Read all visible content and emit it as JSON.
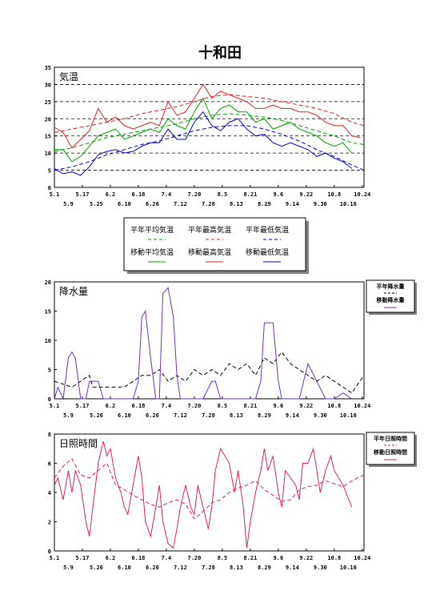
{
  "title": "十和田",
  "chart_data": [
    {
      "type": "line",
      "title": "気温",
      "ylim": [
        0,
        35
      ],
      "yticks": [
        0,
        5,
        10,
        15,
        20,
        25,
        30,
        35
      ],
      "x_ticks_row1": [
        "5.1",
        "5.17",
        "6.2",
        "6.18",
        "7.4",
        "7.20",
        "8.5",
        "8.21",
        "9.6",
        "9.22",
        "10.8",
        "10.24"
      ],
      "x_ticks_row2": [
        "5.9",
        "5.25",
        "6.10",
        "6.26",
        "7.12",
        "7.28",
        "8.13",
        "8.29",
        "9.14",
        "9.30",
        "10.16"
      ],
      "x_days": [
        0,
        177
      ],
      "grid": "horizontal dashed",
      "legend": {
        "placement": "bottom-center",
        "row1": [
          "平年平均気温",
          "平年最高気温",
          "平年最低気温"
        ],
        "row2": [
          "移動平均気温",
          "移動最高気温",
          "移動最低気温"
        ]
      },
      "colors": {
        "mean": "#00a000",
        "max": "#e02020",
        "min": "#0000cc"
      },
      "series": [
        {
          "name": "平年平均気温",
          "style": "dashed",
          "color": "#00a000",
          "x": [
            0,
            10,
            20,
            30,
            40,
            50,
            60,
            70,
            80,
            90,
            100,
            110,
            120,
            130,
            140,
            150,
            160,
            170,
            177
          ],
          "y": [
            10.5,
            11.5,
            13,
            14.5,
            15.5,
            16.5,
            17.5,
            18.5,
            20,
            21,
            21.5,
            21,
            20.5,
            19.5,
            18,
            16.5,
            15,
            13,
            12.5
          ]
        },
        {
          "name": "平年最高気温",
          "style": "dashed",
          "color": "#e02020",
          "x": [
            0,
            10,
            20,
            30,
            40,
            50,
            60,
            70,
            80,
            90,
            100,
            110,
            120,
            130,
            140,
            150,
            160,
            170,
            177
          ],
          "y": [
            16,
            17,
            18,
            19,
            20,
            21.5,
            22.5,
            23.5,
            25,
            26.5,
            27,
            26.5,
            26,
            25,
            24,
            23,
            21.5,
            19,
            18
          ]
        },
        {
          "name": "平年最低気温",
          "style": "dashed",
          "color": "#0000cc",
          "x": [
            0,
            10,
            20,
            30,
            40,
            50,
            60,
            70,
            80,
            90,
            100,
            110,
            120,
            130,
            140,
            150,
            160,
            170,
            177
          ],
          "y": [
            5,
            6,
            7.5,
            9.5,
            11,
            12.5,
            13.5,
            15,
            16.5,
            17.5,
            18,
            18,
            17,
            15.5,
            13.5,
            11,
            9,
            6.5,
            5
          ]
        },
        {
          "name": "移動平均気温",
          "style": "solid",
          "color": "#00a000",
          "x": [
            0,
            5,
            10,
            15,
            20,
            25,
            30,
            35,
            40,
            45,
            50,
            55,
            60,
            65,
            70,
            75,
            80,
            85,
            90,
            95,
            100,
            105,
            110,
            115,
            120,
            125,
            130,
            135,
            140,
            145,
            150,
            155,
            160,
            165,
            170
          ],
          "y": [
            11,
            11,
            7.5,
            9,
            12,
            15,
            16,
            17,
            14,
            15,
            16,
            17,
            16,
            20,
            18,
            17,
            22,
            26,
            20,
            23,
            24,
            22,
            22,
            19,
            20,
            17,
            18,
            19,
            17,
            16,
            15,
            13,
            12,
            13,
            10
          ]
        },
        {
          "name": "移動最高気温",
          "style": "solid",
          "color": "#e02020",
          "x": [
            0,
            5,
            10,
            15,
            20,
            25,
            30,
            35,
            40,
            45,
            50,
            55,
            60,
            65,
            70,
            75,
            80,
            85,
            90,
            95,
            100,
            105,
            110,
            115,
            120,
            125,
            130,
            135,
            140,
            145,
            150,
            155,
            160,
            165,
            170,
            175
          ],
          "y": [
            17.5,
            16,
            11.5,
            14,
            16.5,
            23,
            19,
            20.5,
            18,
            17,
            18,
            19,
            18,
            25,
            21,
            22,
            26,
            30,
            26,
            28,
            27,
            26,
            25,
            23,
            23,
            24,
            23,
            23,
            22,
            22,
            21,
            19,
            18,
            18,
            15,
            14.5
          ]
        },
        {
          "name": "移動最低気温",
          "style": "solid",
          "color": "#0000cc",
          "x": [
            0,
            5,
            10,
            15,
            20,
            25,
            30,
            35,
            40,
            45,
            50,
            55,
            60,
            65,
            70,
            75,
            80,
            85,
            90,
            95,
            100,
            105,
            110,
            115,
            120,
            125,
            130,
            135,
            140,
            145,
            150,
            155,
            160,
            165,
            170
          ],
          "y": [
            5.5,
            4,
            4.5,
            3.5,
            6,
            9.5,
            10.5,
            11,
            10,
            10.5,
            12,
            13,
            13,
            17,
            14,
            14,
            19,
            22,
            18,
            16.5,
            19,
            20,
            17,
            15,
            15.5,
            13,
            12,
            13,
            12,
            11,
            9,
            10,
            8.5,
            7.5,
            5.5
          ]
        }
      ]
    },
    {
      "type": "line",
      "title": "降水量",
      "ylim": [
        0,
        20
      ],
      "yticks": [
        0,
        5,
        10,
        15,
        20
      ],
      "x_ticks_row1": [
        "5.1",
        "5.17",
        "6.2",
        "6.18",
        "7.4",
        "7.20",
        "8.5",
        "8.21",
        "9.6",
        "9.22",
        "10.8",
        "10.24"
      ],
      "x_ticks_row2": [
        "5.9",
        "5.26",
        "6.10",
        "6.26",
        "7.12",
        "7.28",
        "8.13",
        "8.29",
        "9.14",
        "9.30",
        "10.16"
      ],
      "x_days": [
        0,
        177
      ],
      "legend": {
        "placement": "right",
        "entries": [
          "平年降水量",
          "移動降水量"
        ]
      },
      "colors": {
        "normal": "#000000",
        "moving": "#7030c0"
      },
      "series": [
        {
          "name": "平年降水量",
          "style": "dashed",
          "color": "#000000",
          "x": [
            0,
            10,
            20,
            22,
            30,
            40,
            45,
            50,
            55,
            60,
            65,
            70,
            75,
            80,
            85,
            90,
            95,
            100,
            105,
            110,
            115,
            120,
            125,
            130,
            135,
            140,
            145,
            150,
            155,
            160,
            165,
            170,
            177
          ],
          "y": [
            3,
            2,
            4,
            2,
            2,
            2,
            3,
            4,
            4,
            5,
            3,
            4,
            3,
            5,
            4,
            5,
            4,
            6,
            5,
            6,
            4,
            7,
            6,
            8,
            6,
            5,
            4,
            3,
            4,
            3,
            2,
            1,
            4
          ]
        },
        {
          "name": "移動降水量",
          "style": "solid",
          "color": "#7030c0",
          "x": [
            0,
            2,
            5,
            8,
            10,
            12,
            15,
            18,
            20,
            25,
            28,
            30,
            35,
            40,
            45,
            48,
            50,
            52,
            55,
            58,
            60,
            62,
            65,
            68,
            70,
            72,
            75,
            80,
            85,
            90,
            92,
            95,
            100,
            105,
            110,
            115,
            118,
            120,
            125,
            128,
            130,
            132,
            135,
            138,
            140,
            145,
            150,
            155,
            160,
            165,
            170
          ],
          "y": [
            0,
            2,
            0,
            7,
            8,
            7,
            0,
            0,
            3,
            3,
            0,
            0,
            0,
            0,
            0,
            3,
            14,
            15,
            7,
            0,
            0,
            18,
            19,
            14,
            4,
            0,
            0,
            0,
            0,
            3,
            3,
            0,
            0,
            0,
            0,
            0,
            3,
            13,
            13,
            3,
            0,
            0,
            0,
            0,
            0,
            6,
            3,
            0,
            0,
            1,
            0
          ]
        }
      ]
    },
    {
      "type": "line",
      "title": "日照時間",
      "ylim": [
        0,
        8
      ],
      "yticks": [
        0,
        2,
        4,
        6,
        8
      ],
      "x_ticks_row1": [
        "5.1",
        "5.17",
        "6.2",
        "6.18",
        "7.4",
        "7.20",
        "8.5",
        "8.21",
        "9.6",
        "9.22",
        "10.8",
        "10.24"
      ],
      "x_ticks_row2": [
        "5.9",
        "5.26",
        "6.10",
        "6.26",
        "7.12",
        "7.28",
        "8.13",
        "8.29",
        "9.14",
        "9.30",
        "10.16"
      ],
      "x_days": [
        0,
        177
      ],
      "legend": {
        "placement": "right",
        "entries": [
          "平年日照時間",
          "移動日照時間"
        ]
      },
      "colors": {
        "normal": "#e02060",
        "moving": "#e02060"
      },
      "series": [
        {
          "name": "平年日照時間",
          "style": "dashed",
          "color": "#e02060",
          "x": [
            0,
            5,
            10,
            15,
            20,
            25,
            30,
            35,
            40,
            45,
            50,
            55,
            60,
            65,
            70,
            75,
            80,
            85,
            90,
            95,
            100,
            105,
            110,
            115,
            120,
            125,
            130,
            135,
            140,
            145,
            150,
            155,
            160,
            165,
            170,
            177
          ],
          "y": [
            5,
            5.8,
            6.3,
            5.2,
            5,
            5.5,
            6,
            4.5,
            4.2,
            3.8,
            3.5,
            3.2,
            3,
            3.3,
            3.5,
            3.2,
            2.2,
            2.7,
            3.3,
            3.5,
            4,
            4.3,
            4.5,
            4.8,
            4.2,
            3.8,
            3.4,
            3.5,
            4.2,
            4.4,
            4.5,
            4.8,
            4.6,
            4.4,
            4.8,
            5.2
          ]
        },
        {
          "name": "移動日照時間",
          "style": "solid",
          "color": "#e02060",
          "x": [
            0,
            2,
            5,
            8,
            10,
            12,
            15,
            18,
            20,
            25,
            28,
            30,
            32,
            35,
            38,
            40,
            42,
            45,
            48,
            50,
            52,
            55,
            58,
            60,
            62,
            65,
            68,
            70,
            72,
            75,
            78,
            80,
            82,
            85,
            88,
            90,
            92,
            95,
            100,
            103,
            105,
            108,
            110,
            112,
            115,
            118,
            120,
            122,
            125,
            128,
            130,
            132,
            135,
            138,
            140,
            142,
            145,
            148,
            150,
            152,
            155,
            158,
            160,
            165,
            170
          ],
          "y": [
            4.5,
            5,
            3.5,
            5.5,
            4,
            5.5,
            4.5,
            2,
            1,
            6,
            7.5,
            6.5,
            7,
            5,
            4,
            3,
            2.5,
            4.5,
            6.5,
            5,
            2,
            1,
            3,
            4.5,
            2,
            0.5,
            0.2,
            1.5,
            3,
            4.5,
            3,
            2.5,
            4.5,
            3,
            1.5,
            3,
            5.5,
            7,
            6,
            4,
            5.5,
            3,
            0.2,
            2,
            4,
            5.5,
            7,
            5.5,
            6.5,
            4,
            3,
            5.5,
            5,
            4.5,
            3.5,
            6,
            6,
            7,
            5.5,
            4,
            5.5,
            6.5,
            5.5,
            4.5,
            3
          ]
        }
      ]
    }
  ]
}
